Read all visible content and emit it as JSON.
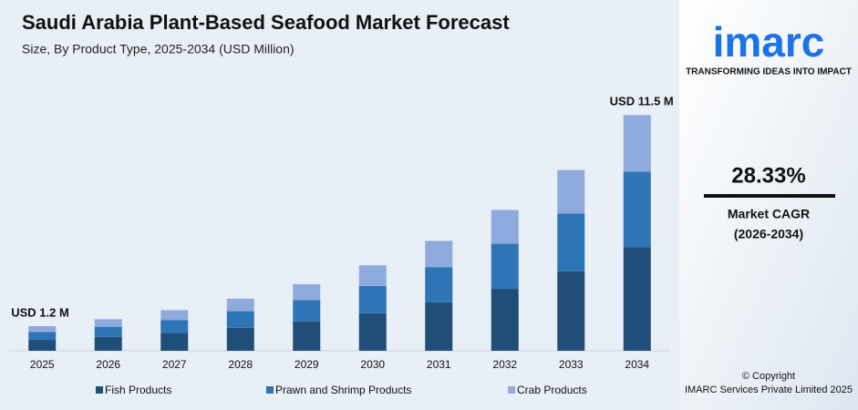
{
  "chart_data": {
    "type": "stacked_bar",
    "title": "Saudi Arabia Plant-Based Seafood Market Forecast",
    "subtitle": "Size, By Product Type, 2025-2034 (USD Million)",
    "categories": [
      "2025",
      "2026",
      "2027",
      "2028",
      "2029",
      "2030",
      "2031",
      "2032",
      "2033",
      "2034"
    ],
    "series": [
      {
        "name": "Fish Products",
        "color": "#1f4e79",
        "values": [
          0.53,
          0.68,
          0.87,
          1.12,
          1.43,
          1.83,
          2.36,
          3.02,
          3.88,
          5.06
        ]
      },
      {
        "name": "Prawn and Shrimp Products",
        "color": "#2e75b6",
        "values": [
          0.38,
          0.49,
          0.63,
          0.81,
          1.04,
          1.33,
          1.72,
          2.2,
          2.82,
          3.68
        ]
      },
      {
        "name": "Crab Products",
        "color": "#8faadc",
        "values": [
          0.29,
          0.37,
          0.48,
          0.61,
          0.78,
          1.01,
          1.28,
          1.65,
          2.12,
          2.76
        ]
      }
    ],
    "annotations": [
      {
        "text": "USD 1.2 M",
        "category": "2025"
      },
      {
        "text": "USD 11.5 M",
        "category": "2034"
      }
    ],
    "ylim": [
      0,
      12
    ],
    "legend": "bottom"
  },
  "side_panel": {
    "logo": "imarc",
    "tagline": "TRANSFORMING IDEAS INTO IMPACT",
    "cagr": "28.33%",
    "cagr_label": "Market CAGR",
    "cagr_period": "(2026-2034)",
    "copyright": "© Copyright",
    "company": "IMARC Services Private Limited 2025"
  }
}
